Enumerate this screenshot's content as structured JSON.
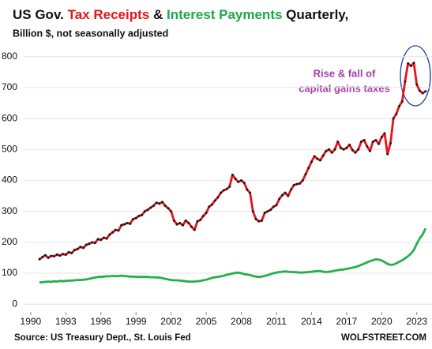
{
  "chart_data": {
    "type": "line",
    "title_prefix": "US Gov.",
    "title_joiner": "&",
    "title_suffix": "Quarterly,",
    "subtitle": "Billion $, not seasonally adjusted",
    "annotation": [
      "Rise & fall of",
      "capital gains taxes"
    ],
    "source": "Source: US Treasury Dept., St. Louis Fed",
    "credit": "WOLFSTREET.COM",
    "xlim": [
      1989.4,
      2024.3
    ],
    "ylim": [
      -25,
      830
    ],
    "xticks": [
      1990,
      1993,
      1996,
      1999,
      2002,
      2005,
      2008,
      2011,
      2014,
      2017,
      2020,
      2023
    ],
    "yticks": [
      0,
      100,
      200,
      300,
      400,
      500,
      600,
      700,
      800
    ],
    "grid": true,
    "x": [
      1990.75,
      1991,
      1991.25,
      1991.5,
      1991.75,
      1992,
      1992.25,
      1992.5,
      1992.75,
      1993,
      1993.25,
      1993.5,
      1993.75,
      1994,
      1994.25,
      1994.5,
      1994.75,
      1995,
      1995.25,
      1995.5,
      1995.75,
      1996,
      1996.25,
      1996.5,
      1996.75,
      1997,
      1997.25,
      1997.5,
      1997.75,
      1998,
      1998.25,
      1998.5,
      1998.75,
      1999,
      1999.25,
      1999.5,
      1999.75,
      2000,
      2000.25,
      2000.5,
      2000.75,
      2001,
      2001.25,
      2001.5,
      2001.75,
      2002,
      2002.25,
      2002.5,
      2002.75,
      2003,
      2003.25,
      2003.5,
      2003.75,
      2004,
      2004.25,
      2004.5,
      2004.75,
      2005,
      2005.25,
      2005.5,
      2005.75,
      2006,
      2006.25,
      2006.5,
      2006.75,
      2007,
      2007.25,
      2007.5,
      2007.75,
      2008,
      2008.25,
      2008.5,
      2008.75,
      2009,
      2009.25,
      2009.5,
      2009.75,
      2010,
      2010.25,
      2010.5,
      2010.75,
      2011,
      2011.25,
      2011.5,
      2011.75,
      2012,
      2012.25,
      2012.5,
      2012.75,
      2013,
      2013.25,
      2013.5,
      2013.75,
      2014,
      2014.25,
      2014.5,
      2014.75,
      2015,
      2015.25,
      2015.5,
      2015.75,
      2016,
      2016.25,
      2016.5,
      2016.75,
      2017,
      2017.25,
      2017.5,
      2017.75,
      2018,
      2018.25,
      2018.5,
      2018.75,
      2019,
      2019.25,
      2019.5,
      2019.75,
      2020,
      2020.25,
      2020.5,
      2020.75,
      2021,
      2021.25,
      2021.5,
      2021.75,
      2022,
      2022.25,
      2022.5,
      2022.75,
      2023,
      2023.25,
      2023.5,
      2023.75
    ],
    "series": [
      {
        "name": "Tax Receipts",
        "color": "#e8141a",
        "marker_color": "#1a1a1a",
        "values": [
          145,
          152,
          158,
          150,
          156,
          155,
          160,
          157,
          162,
          160,
          168,
          165,
          175,
          178,
          185,
          182,
          192,
          195,
          200,
          198,
          210,
          208,
          215,
          212,
          225,
          232,
          240,
          238,
          255,
          258,
          262,
          260,
          275,
          278,
          285,
          288,
          300,
          305,
          312,
          318,
          328,
          325,
          330,
          318,
          310,
          300,
          270,
          258,
          262,
          255,
          270,
          262,
          250,
          240,
          268,
          272,
          285,
          295,
          315,
          322,
          335,
          345,
          360,
          368,
          372,
          380,
          418,
          405,
          395,
          400,
          392,
          370,
          360,
          300,
          275,
          268,
          270,
          295,
          300,
          305,
          315,
          320,
          340,
          352,
          360,
          350,
          370,
          385,
          388,
          390,
          400,
          420,
          440,
          460,
          478,
          470,
          465,
          480,
          495,
          500,
          490,
          500,
          525,
          505,
          500,
          505,
          515,
          498,
          490,
          500,
          525,
          530,
          510,
          495,
          525,
          530,
          518,
          540,
          552,
          485,
          520,
          600,
          615,
          640,
          655,
          720,
          778,
          770,
          780,
          710,
          690,
          682,
          688
        ]
      },
      {
        "name": "Interest Payments",
        "color": "#22b14c",
        "values": [
          70,
          71,
          72,
          73,
          72,
          74,
          73,
          75,
          74,
          75,
          76,
          76,
          77,
          78,
          78,
          79,
          80,
          82,
          84,
          86,
          88,
          88,
          89,
          90,
          90,
          91,
          90,
          91,
          92,
          91,
          90,
          89,
          89,
          88,
          88,
          88,
          88,
          88,
          87,
          87,
          86,
          86,
          84,
          82,
          80,
          78,
          77,
          77,
          76,
          75,
          74,
          73,
          73,
          73,
          74,
          75,
          77,
          79,
          82,
          85,
          87,
          88,
          90,
          92,
          95,
          97,
          99,
          101,
          102,
          100,
          97,
          96,
          94,
          91,
          89,
          88,
          89,
          91,
          94,
          97,
          100,
          102,
          104,
          105,
          106,
          105,
          104,
          104,
          103,
          102,
          102,
          103,
          104,
          105,
          106,
          107,
          107,
          105,
          104,
          105,
          106,
          108,
          110,
          111,
          112,
          114,
          116,
          118,
          120,
          123,
          127,
          131,
          135,
          139,
          142,
          145,
          144,
          141,
          136,
          130,
          127,
          128,
          132,
          137,
          142,
          148,
          155,
          163,
          175,
          195,
          212,
          225,
          245
        ]
      }
    ]
  }
}
